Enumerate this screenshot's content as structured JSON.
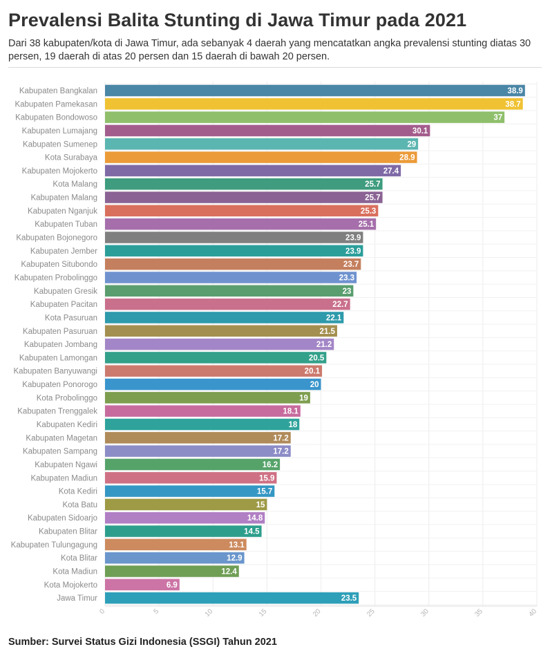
{
  "header": {
    "title": "Prevalensi Balita Stunting di Jawa Timur pada 2021",
    "subtitle": "Dari 38 kabupaten/kota di Jawa Timur, ada sebanyak 4 daerah yang mencatatkan angka prevalensi stunting diatas 30 persen, 19 daerah di atas 20 persen dan 15 daerah di bawah 20 persen."
  },
  "footer": {
    "source": "Sumber: Survei Status Gizi Indonesia (SSGI) Tahun 2021"
  },
  "chart_data": {
    "type": "bar",
    "orientation": "horizontal",
    "title": "Prevalensi Balita Stunting di Jawa Timur pada 2021",
    "xlabel": "",
    "ylabel": "",
    "xlim": [
      0,
      40
    ],
    "x_ticks": [
      0,
      5,
      10,
      15,
      20,
      25,
      30,
      35,
      40
    ],
    "grid": true,
    "categories": [
      "Kabupaten Bangkalan",
      "Kabupaten Pamekasan",
      "Kabupaten Bondowoso",
      "Kabupaten Lumajang",
      "Kabupaten Sumenep",
      "Kota Surabaya",
      "Kabupaten Mojokerto",
      "Kota Malang",
      "Kabupaten Malang",
      "Kabupaten Nganjuk",
      "Kabupaten Tuban",
      "Kabupaten Bojonegoro",
      "Kabupaten Jember",
      "Kabupaten Situbondo",
      "Kabupaten Probolinggo",
      "Kabupaten Gresik",
      "Kabupaten Pacitan",
      "Kota Pasuruan",
      "Kabupaten Pasuruan",
      "Kabupaten Jombang",
      "Kabupaten Lamongan",
      "Kabupaten Banyuwangi",
      "Kabupaten Ponorogo",
      "Kota Probolinggo",
      "Kabupaten Trenggalek",
      "Kabupaten Kediri",
      "Kabupaten Magetan",
      "Kabupaten Sampang",
      "Kabupaten Ngawi",
      "Kabupaten Madiun",
      "Kota Kediri",
      "Kota Batu",
      "Kabupaten Sidoarjo",
      "Kabupaten Blitar",
      "Kabupaten Tulungagung",
      "Kota Blitar",
      "Kota Madiun",
      "Kota Mojokerto",
      "Jawa Timur"
    ],
    "values": [
      38.9,
      38.7,
      37,
      30.1,
      29,
      28.9,
      27.4,
      25.7,
      25.7,
      25.3,
      25.1,
      23.9,
      23.9,
      23.7,
      23.3,
      23,
      22.7,
      22.1,
      21.5,
      21.2,
      20.5,
      20.1,
      20,
      19,
      18.1,
      18,
      17.2,
      17.2,
      16.2,
      15.9,
      15.7,
      15,
      14.8,
      14.5,
      13.1,
      12.9,
      12.4,
      6.9,
      23.5
    ],
    "colors": [
      "#4a86a6",
      "#f0c233",
      "#8fbf6b",
      "#a35d8c",
      "#5bb5b0",
      "#eb9b38",
      "#7f6aa6",
      "#3f9c7e",
      "#8a6394",
      "#d9705e",
      "#a66fab",
      "#7f7f7f",
      "#2c9e9a",
      "#c47f5e",
      "#6f92cf",
      "#5a9e6f",
      "#c9708c",
      "#2e9aab",
      "#a38f4f",
      "#a386c7",
      "#33a08a",
      "#cc7a6e",
      "#3a95cc",
      "#7d9e4f",
      "#c76b9e",
      "#2fa39b",
      "#b08b5a",
      "#8c8cc7",
      "#56a36a",
      "#cf7185",
      "#3597c4",
      "#9e9a45",
      "#b07fc4",
      "#2d9e8c",
      "#cc8a5e",
      "#6a96cc",
      "#6f9e55",
      "#cc74a6",
      "#2e9fb8"
    ]
  }
}
